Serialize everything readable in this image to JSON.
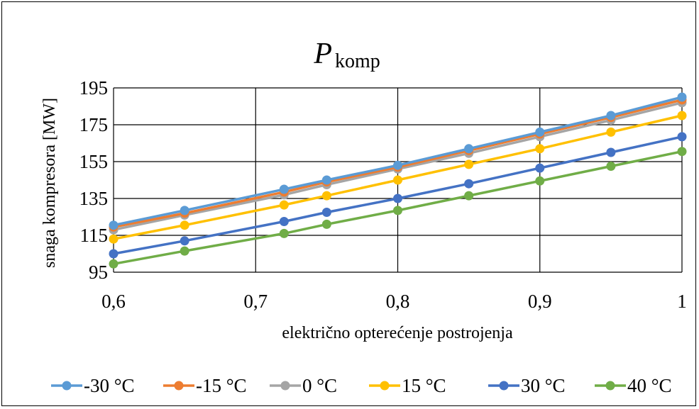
{
  "chart_data": {
    "type": "line",
    "title": "P",
    "title_subscript": "komp",
    "xlabel": "električno opterećenje postrojenja",
    "ylabel": "snaga kompresora [MW]",
    "xlim": [
      0.6,
      1
    ],
    "ylim": [
      95,
      195
    ],
    "x_tick_labels": [
      "0,6",
      "0,7",
      "0,8",
      "0,9",
      "1"
    ],
    "y_tick_labels": [
      "95",
      "115",
      "135",
      "155",
      "175",
      "195"
    ],
    "grid": true,
    "legend_position": "bottom",
    "x": [
      0.6,
      0.65,
      0.72,
      0.75,
      0.8,
      0.85,
      0.9,
      0.95,
      1.0
    ],
    "series": [
      {
        "name": "-30 °C",
        "color": "#5B9BD5",
        "values": [
          120.5,
          128.5,
          140,
          145,
          153,
          162,
          171,
          180,
          190
        ]
      },
      {
        "name": "-15 °C",
        "color": "#ED7D31",
        "values": [
          119.5,
          127,
          138.5,
          144,
          152,
          161,
          170,
          179,
          188.5
        ]
      },
      {
        "name": "0 °C",
        "color": "#A5A5A5",
        "values": [
          118,
          126,
          137,
          142.5,
          151,
          159.5,
          168.5,
          177.5,
          187
        ]
      },
      {
        "name": "15 °C",
        "color": "#FFC000",
        "values": [
          113,
          120.5,
          131.5,
          136.5,
          145,
          153.5,
          162,
          171,
          180
        ]
      },
      {
        "name": "30 °C",
        "color": "#4472C4",
        "values": [
          105,
          112,
          122.5,
          127.5,
          135,
          143,
          151.5,
          160,
          168.5
        ]
      },
      {
        "name": "40 °C",
        "color": "#70AD47",
        "values": [
          99.5,
          106.5,
          116,
          121,
          128.5,
          136.5,
          144.5,
          152.5,
          160.5
        ]
      }
    ]
  }
}
